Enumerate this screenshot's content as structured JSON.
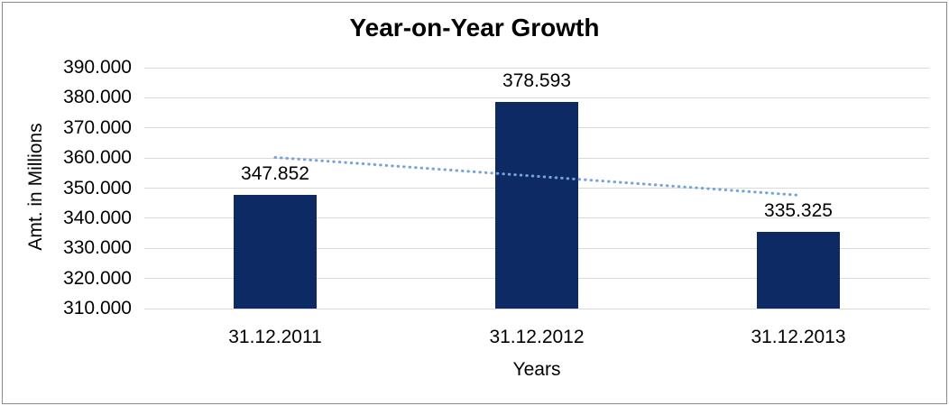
{
  "window": {
    "background_color": "#FFFFFF",
    "frame_border_color": "#8A8A8A"
  },
  "chart_data": {
    "type": "bar",
    "title": "Year-on-Year Growth",
    "xlabel": "Years",
    "ylabel": "Amt. in Millions",
    "categories": [
      "31.12.2011",
      "31.12.2012",
      "31.12.2013"
    ],
    "values": [
      347.852,
      378.593,
      335.325
    ],
    "value_labels": [
      "347.852",
      "378.593",
      "335.325"
    ],
    "ylim": [
      310,
      390
    ],
    "y_ticks": [
      {
        "value": 390,
        "label": "390.000"
      },
      {
        "value": 380,
        "label": "380.000"
      },
      {
        "value": 370,
        "label": "370.000"
      },
      {
        "value": 360,
        "label": "360.000"
      },
      {
        "value": 350,
        "label": "350.000"
      },
      {
        "value": 340,
        "label": "340.000"
      },
      {
        "value": 330,
        "label": "330.000"
      },
      {
        "value": 320,
        "label": "320.000"
      },
      {
        "value": 310,
        "label": "310.000"
      }
    ],
    "grid": true,
    "legend": false,
    "bar_color": "#0D2A64",
    "grid_color": "#D9D9D9",
    "text_color": "#000000",
    "trendline": {
      "type": "linear",
      "style": "dotted",
      "color": "#74A3DD",
      "start_value": 360.19,
      "end_value": 347.66
    }
  }
}
